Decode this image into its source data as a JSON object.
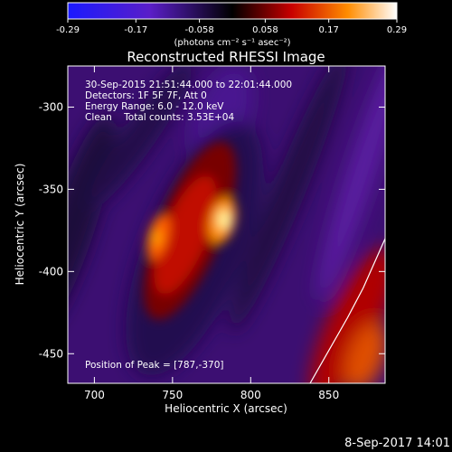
{
  "chart_data": {
    "type": "heatmap",
    "title": "Reconstructed RHESSI Image",
    "xlabel": "Heliocentric X (arcsec)",
    "ylabel": "Heliocentric Y (arcsec)",
    "xlim": [
      683,
      886
    ],
    "ylim": [
      -468,
      -275
    ],
    "x_ticks": [
      700,
      750,
      800,
      850
    ],
    "y_ticks": [
      -300,
      -350,
      -400,
      -450
    ],
    "colorbar": {
      "min": -0.29,
      "max": 0.29,
      "ticks": [
        "-0.29",
        "-0.17",
        "-0.058",
        "0.058",
        "0.17",
        "0.29"
      ],
      "unit_label": "(photons cm⁻² s⁻¹ asec⁻²)"
    },
    "annotations": [
      "30-Sep-2015 21:51:44.000 to 22:01:44.000",
      "Detectors: 1F 5F 7F, Att 0",
      "Energy Range: 6.0 - 12.0 keV",
      "Clean    Total counts: 3.53E+04"
    ],
    "peak": {
      "label": "Position of Peak = [787,-370]",
      "x": 787,
      "y": -370
    },
    "limb_curve": [
      [
        838,
        -468
      ],
      [
        850,
        -448
      ],
      [
        862,
        -428
      ],
      [
        872,
        -410
      ],
      [
        879,
        -395
      ],
      [
        886,
        -380
      ]
    ],
    "sources": [
      {
        "x": 787,
        "y": -370,
        "intensity": 0.29
      },
      {
        "x": 745,
        "y": -376,
        "intensity": 0.22
      }
    ],
    "footer": "8-Sep-2017 14:01"
  }
}
